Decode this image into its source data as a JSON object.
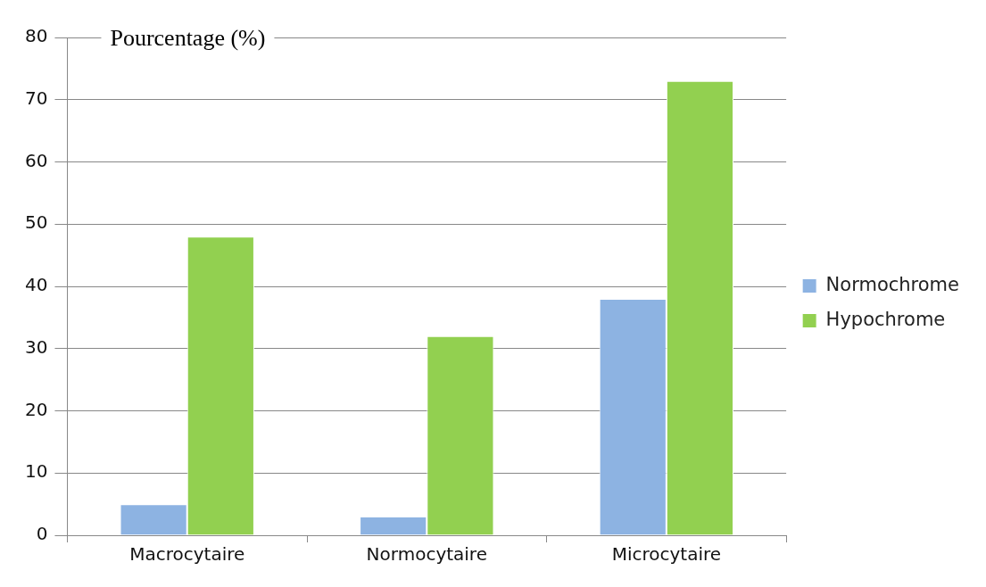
{
  "chart_data": {
    "type": "bar",
    "ylabel": "Pourcentage (%)",
    "categories": [
      "Macrocytaire",
      "Normocytaire",
      "Microcytaire"
    ],
    "series": [
      {
        "name": "Normochrome",
        "color": "#8db3e2",
        "values": [
          5,
          3,
          38
        ]
      },
      {
        "name": "Hypochrome",
        "color": "#92d050",
        "values": [
          48,
          32,
          73
        ]
      }
    ],
    "ylim": [
      0,
      80
    ],
    "yticks": [
      0,
      10,
      20,
      30,
      40,
      50,
      60,
      70,
      80
    ],
    "grid": "y",
    "legend": "right"
  }
}
